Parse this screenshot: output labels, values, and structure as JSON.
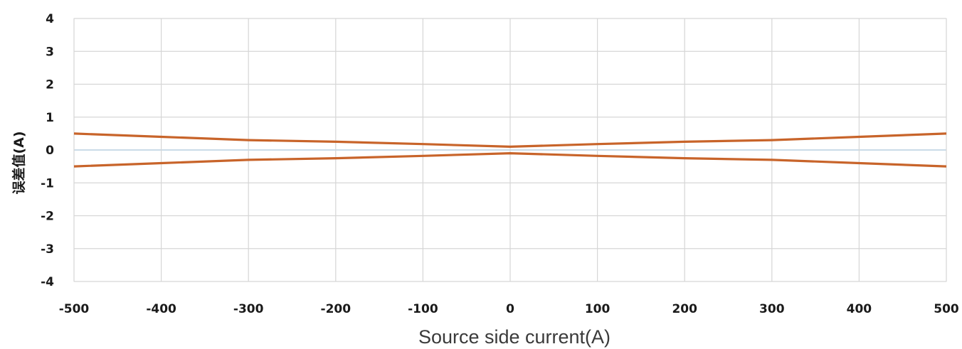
{
  "chart_data": {
    "type": "line",
    "xlabel": "Source side current(A)",
    "ylabel": "误差值(A)",
    "xlim": [
      -500,
      500
    ],
    "ylim": [
      -4,
      4
    ],
    "x_ticks": [
      -500,
      -400,
      -300,
      -200,
      -100,
      0,
      100,
      200,
      300,
      400,
      500
    ],
    "y_ticks": [
      4,
      3,
      2,
      1,
      0,
      -1,
      -2,
      -3,
      -4
    ],
    "grid": true,
    "legend": "none",
    "x": [
      -500,
      -400,
      -300,
      -200,
      -100,
      0,
      100,
      200,
      300,
      400,
      500
    ],
    "series": [
      {
        "color": "#c8642a",
        "values": [
          0.5,
          0.4,
          0.3,
          0.25,
          0.18,
          0.1,
          0.18,
          0.25,
          0.3,
          0.4,
          0.5
        ]
      },
      {
        "color": "#c8642a",
        "values": [
          -0.5,
          -0.4,
          -0.3,
          -0.25,
          -0.18,
          -0.1,
          -0.18,
          -0.25,
          -0.3,
          -0.4,
          -0.5
        ]
      }
    ]
  }
}
